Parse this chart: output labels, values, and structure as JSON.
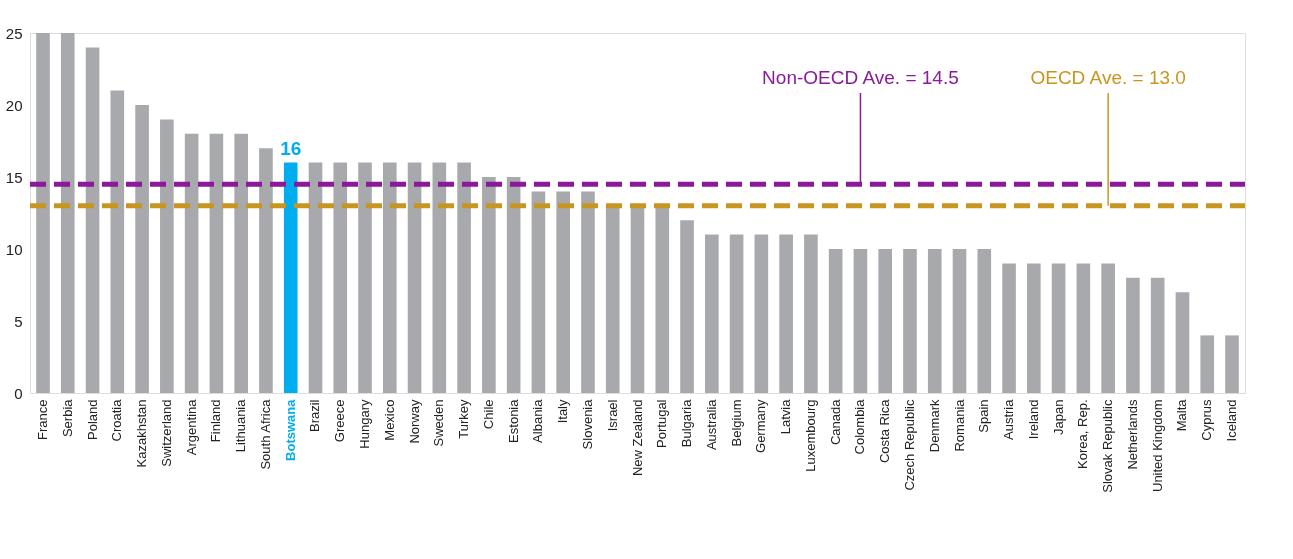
{
  "chart_data": {
    "type": "bar",
    "categories": [
      "France",
      "Serbia",
      "Poland",
      "Croatia",
      "Kazakhstan",
      "Switzerland",
      "Argentina",
      "Finland",
      "Lithuania",
      "South Africa",
      "Botswana",
      "Brazil",
      "Greece",
      "Hungary",
      "Mexico",
      "Norway",
      "Sweden",
      "Turkey",
      "Chile",
      "Estonia",
      "Albania",
      "Italy",
      "Slovenia",
      "Israel",
      "New Zealand",
      "Portugal",
      "Bulgaria",
      "Australia",
      "Belgium",
      "Germany",
      "Latvia",
      "Luxembourg",
      "Canada",
      "Colombia",
      "Costa Rica",
      "Czech Republic",
      "Denmark",
      "Romania",
      "Spain",
      "Austria",
      "Ireland",
      "Japan",
      "Korea, Rep.",
      "Slovak Republic",
      "Netherlands",
      "United Kingdom",
      "Malta",
      "Cyprus",
      "Iceland"
    ],
    "values": [
      25,
      25,
      24,
      21,
      20,
      19,
      18,
      18,
      18,
      17,
      16,
      16,
      16,
      16,
      16,
      16,
      16,
      16,
      15,
      15,
      14,
      14,
      14,
      13,
      13,
      13,
      12,
      11,
      11,
      11,
      11,
      11,
      10,
      10,
      10,
      10,
      10,
      10,
      10,
      9,
      9,
      9,
      9,
      9,
      8,
      8,
      7,
      4,
      4
    ],
    "colors": [
      "#a7a9ac",
      "#a7a9ac",
      "#a7a9ac",
      "#a7a9ac",
      "#a7a9ac",
      "#a7a9ac",
      "#a7a9ac",
      "#a7a9ac",
      "#a7a9ac",
      "#a7a9ac",
      "#00aeef",
      "#a7a9ac",
      "#a7a9ac",
      "#a7a9ac",
      "#a7a9ac",
      "#a7a9ac",
      "#a7a9ac",
      "#a7a9ac",
      "#a7a9ac",
      "#a7a9ac",
      "#a7a9ac",
      "#a7a9ac",
      "#a7a9ac",
      "#a7a9ac",
      "#a7a9ac",
      "#a7a9ac",
      "#a7a9ac",
      "#a7a9ac",
      "#a7a9ac",
      "#a7a9ac",
      "#a7a9ac",
      "#a7a9ac",
      "#a7a9ac",
      "#a7a9ac",
      "#a7a9ac",
      "#a7a9ac",
      "#a7a9ac",
      "#a7a9ac",
      "#a7a9ac",
      "#a7a9ac",
      "#a7a9ac",
      "#a7a9ac",
      "#a7a9ac",
      "#a7a9ac",
      "#a7a9ac",
      "#a7a9ac",
      "#a7a9ac",
      "#a7a9ac",
      "#a7a9ac"
    ],
    "value_labels": [
      null,
      null,
      null,
      null,
      null,
      null,
      null,
      null,
      null,
      null,
      "16",
      null,
      null,
      null,
      null,
      null,
      null,
      null,
      null,
      null,
      null,
      null,
      null,
      null,
      null,
      null,
      null,
      null,
      null,
      null,
      null,
      null,
      null,
      null,
      null,
      null,
      null,
      null,
      null,
      null,
      null,
      null,
      null,
      null,
      null,
      null,
      null,
      null,
      null
    ],
    "ylim": [
      0,
      25
    ],
    "yticks": [
      0,
      5,
      10,
      15,
      20,
      25
    ],
    "grid": false,
    "ref_lines": [
      {
        "axis": "y",
        "value": 14.5,
        "label": "Non-OECD Ave. = 14.5",
        "color": "#8b1a9b",
        "line_style": "dashed"
      },
      {
        "axis": "y",
        "value": 13.0,
        "label": "OECD Ave. = 13.0",
        "color": "#c8961e",
        "line_style": "dashed"
      }
    ]
  }
}
